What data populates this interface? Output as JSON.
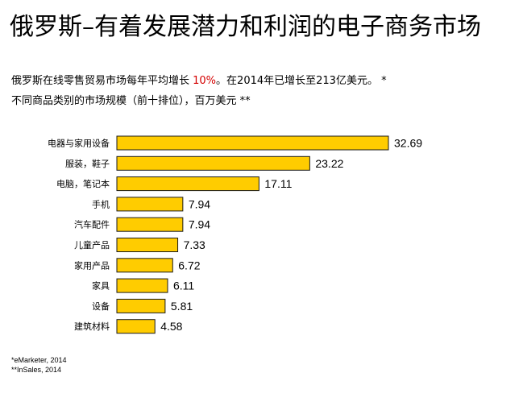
{
  "header": {
    "title": "俄罗斯–有着发展潜力和利润的电子商务市场",
    "line1_before": "俄罗斯在线零售贸易市场每年平均增长 ",
    "line1_highlight": "10%",
    "line1_after": "。在2014年已增长至213亿美元。 *",
    "line2": "不同商品类别的市场规模（前十排位），百万美元 **"
  },
  "colors": {
    "bar": "#ffcc00",
    "highlight": "#d40000"
  },
  "chart_data": {
    "type": "bar",
    "orientation": "horizontal",
    "categories": [
      "电器与家用设备",
      "服装，鞋子",
      "电脑，笔记本",
      "手机",
      "汽车配件",
      "儿童产品",
      "家用产品",
      "家具",
      "设备",
      "建筑材料"
    ],
    "values": [
      32.69,
      23.22,
      17.11,
      7.94,
      7.94,
      7.33,
      6.72,
      6.11,
      5.81,
      4.58
    ],
    "value_labels": [
      "32.69",
      "23.22",
      "17.11",
      "7.94",
      "7.94",
      "7.33",
      "6.72",
      "6.11",
      "5.81",
      "4.58"
    ],
    "title": "",
    "xlabel": "",
    "ylabel": "",
    "xlim": [
      0,
      32.69
    ],
    "grid": false
  },
  "sources": {
    "s1": "*eMarketer, 2014",
    "s2": "**InSales, 2014"
  }
}
